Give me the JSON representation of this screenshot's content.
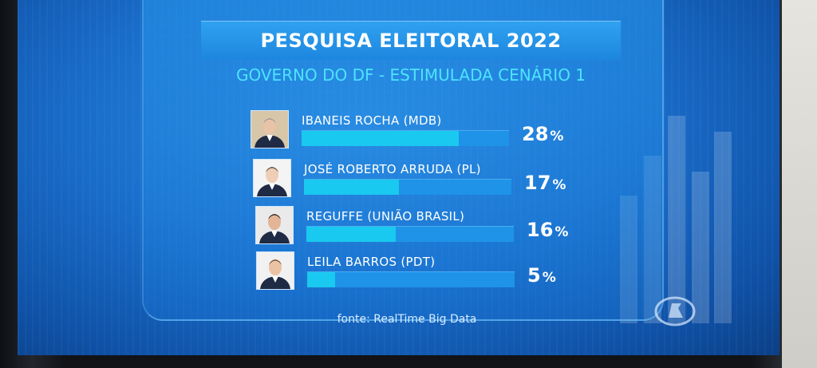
{
  "chart_data": {
    "type": "bar",
    "title": "PESQUISA ELEITORAL 2022",
    "subtitle": "GOVERNO DO DF - ESTIMULADA CENÁRIO 1",
    "categories": [
      "IBANEIS ROCHA (MDB)",
      "JOSÉ ROBERTO ARRUDA (PL)",
      "REGUFFE (UNIÃO BRASIL)",
      "LEILA BARROS (PDT)"
    ],
    "values": [
      28,
      17,
      16,
      5
    ],
    "value_labels": [
      "28",
      "17",
      "16",
      "5"
    ],
    "unit": "%",
    "ylim": [
      0,
      100
    ],
    "orientation": "horizontal",
    "source": "fonte: RealTime Big Data"
  },
  "colors": {
    "bar_fill": "#19c9ef",
    "bar_track": "#1e93e8",
    "subtitle": "#4de3ff"
  }
}
